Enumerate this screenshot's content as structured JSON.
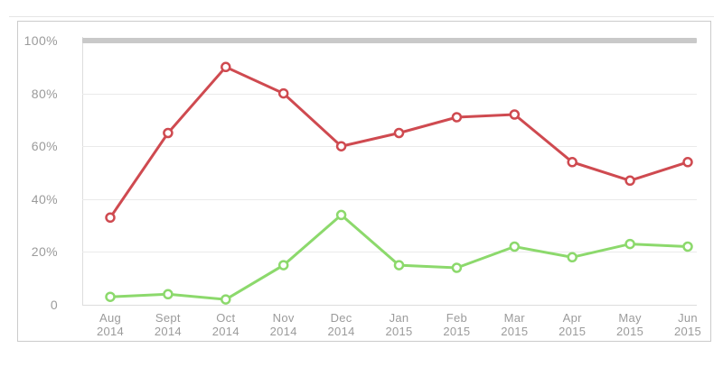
{
  "chart_data": {
    "type": "line",
    "categories": [
      {
        "month": "Aug",
        "year": "2014"
      },
      {
        "month": "Sept",
        "year": "2014"
      },
      {
        "month": "Oct",
        "year": "2014"
      },
      {
        "month": "Nov",
        "year": "2014"
      },
      {
        "month": "Dec",
        "year": "2014"
      },
      {
        "month": "Jan",
        "year": "2015"
      },
      {
        "month": "Feb",
        "year": "2015"
      },
      {
        "month": "Mar",
        "year": "2015"
      },
      {
        "month": "Apr",
        "year": "2015"
      },
      {
        "month": "May",
        "year": "2015"
      },
      {
        "month": "Jun",
        "year": "2015"
      }
    ],
    "y_ticks": [
      {
        "label": "100%",
        "value": 100
      },
      {
        "label": "80%",
        "value": 80
      },
      {
        "label": "60%",
        "value": 60
      },
      {
        "label": "40%",
        "value": 40
      },
      {
        "label": "20%",
        "value": 20
      },
      {
        "label": "0",
        "value": 0
      }
    ],
    "ylim": [
      0,
      100
    ],
    "grid": true,
    "legend": "none",
    "max_band": {
      "value": 100,
      "color": "#c9c9c9"
    },
    "series": [
      {
        "name": "red",
        "color": "#cf4a50",
        "marker_fill": "#ffffff",
        "values": [
          33,
          65,
          90,
          80,
          60,
          65,
          71,
          72,
          54,
          47,
          54
        ]
      },
      {
        "name": "green",
        "color": "#8cd96c",
        "marker_fill": "#ffffff",
        "values": [
          3,
          4,
          2,
          15,
          34,
          15,
          14,
          22,
          18,
          23,
          22
        ]
      }
    ]
  },
  "colors": {
    "background": "#ffffff",
    "card_border": "#cbcbcb",
    "top_rule": "#e5e5e5",
    "gridline": "#eaeaea",
    "axis_line": "#dddddd",
    "max_band": "#c9c9c9",
    "label_text": "#9b9b9b"
  }
}
